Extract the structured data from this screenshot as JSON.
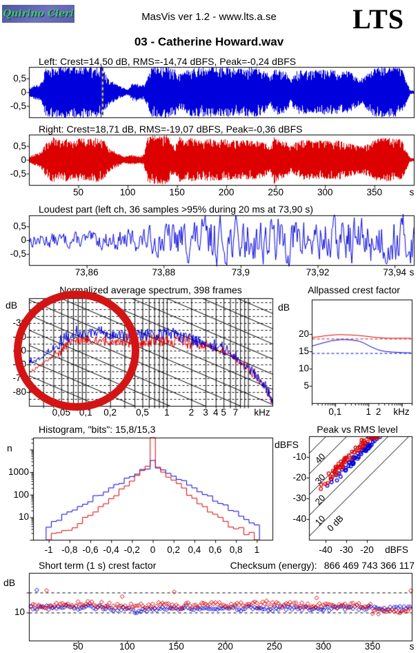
{
  "header": {
    "logo_text": "Quirino Cieri",
    "version_line": "MasVis ver 1.2 - www.lts.a.se",
    "brand": "LTS",
    "title": "03 - Catherine Howard.wav"
  },
  "colors": {
    "left_channel": "#0000dd",
    "right_channel": "#dd0000",
    "annotation": "#d41414",
    "logo_bg": "#5c61ab",
    "logo_text": "#3dc95d"
  },
  "chart_data": [
    {
      "id": "waveform-left",
      "type": "area",
      "channel": "left",
      "title": "Left: Crest=14,50 dB, RMS=-14,74 dBFS, Peak=-0,24 dBFS",
      "ylim": [
        -0.92,
        0.92
      ],
      "yticks": {
        "values": [
          0.5,
          0,
          -0.5
        ],
        "labels": [
          "0,5",
          "0",
          "-0,5"
        ]
      },
      "xlim": [
        0,
        390
      ],
      "marker_s": 73.9,
      "seed": 3,
      "envelope_t": [
        0,
        5,
        10,
        14,
        16,
        20,
        30,
        40,
        50,
        60,
        70,
        74,
        78,
        82,
        86,
        90,
        95,
        99,
        101,
        104,
        108,
        112,
        116,
        120,
        124,
        132,
        140,
        148,
        152,
        156,
        160,
        165,
        175,
        185,
        195,
        205,
        215,
        225,
        235,
        240,
        244,
        247,
        250,
        255,
        260,
        264,
        268,
        272,
        280,
        290,
        300,
        310,
        320,
        325,
        330,
        335,
        340,
        345,
        350,
        360,
        370,
        375,
        378,
        381,
        384,
        386,
        390
      ],
      "envelope_a": [
        0.15,
        0.25,
        0.3,
        0.5,
        0.85,
        0.9,
        0.92,
        0.95,
        0.93,
        0.9,
        0.92,
        0.95,
        0.6,
        0.45,
        0.35,
        0.25,
        0.18,
        0.1,
        0.12,
        0.3,
        0.35,
        0.25,
        0.3,
        0.55,
        0.9,
        0.92,
        0.92,
        0.85,
        0.65,
        0.7,
        0.8,
        0.9,
        0.9,
        0.9,
        0.9,
        0.88,
        0.85,
        0.92,
        0.85,
        0.8,
        0.5,
        0.75,
        0.85,
        0.8,
        0.75,
        0.45,
        0.6,
        0.8,
        0.8,
        0.8,
        0.82,
        0.8,
        0.8,
        0.75,
        0.6,
        0.5,
        0.55,
        0.75,
        0.9,
        0.9,
        0.9,
        0.88,
        0.8,
        0.5,
        0.25,
        0.08,
        0.05
      ]
    },
    {
      "id": "waveform-right",
      "type": "area",
      "channel": "right",
      "title": "Right: Crest=18,71 dB, RMS=-19,07 dBFS, Peak=-0,36 dBFS",
      "ylim": [
        -0.92,
        0.92
      ],
      "yticks": {
        "values": [
          0.5,
          0,
          -0.5
        ],
        "labels": [
          "0,5",
          "0",
          "-0,5"
        ]
      },
      "xlim": [
        0,
        390
      ],
      "xticks": {
        "values": [
          50,
          100,
          150,
          200,
          250,
          300,
          350
        ],
        "labels": [
          "50",
          "100",
          "150",
          "200",
          "250",
          "300",
          "350"
        ]
      },
      "x_unit": "s",
      "seed": 9,
      "envelope_t": [
        0,
        5,
        10,
        14,
        16,
        20,
        24,
        28,
        36,
        44,
        52,
        60,
        68,
        76,
        80,
        84,
        88,
        92,
        96,
        100,
        104,
        108,
        112,
        116,
        120,
        124,
        132,
        140,
        144,
        148,
        152,
        156,
        164,
        172,
        180,
        190,
        200,
        210,
        220,
        230,
        235,
        240,
        244,
        248,
        252,
        260,
        264,
        268,
        276,
        285,
        295,
        305,
        315,
        325,
        330,
        335,
        340,
        345,
        350,
        355,
        365,
        375,
        378,
        381,
        384,
        386,
        390
      ],
      "envelope_a": [
        0.12,
        0.2,
        0.25,
        0.4,
        0.6,
        0.7,
        0.85,
        0.7,
        0.8,
        0.72,
        0.8,
        0.75,
        0.82,
        0.7,
        0.45,
        0.35,
        0.3,
        0.2,
        0.12,
        0.15,
        0.18,
        0.15,
        0.12,
        0.2,
        0.8,
        0.9,
        0.88,
        0.9,
        0.6,
        0.5,
        0.85,
        0.7,
        0.8,
        0.72,
        0.78,
        0.75,
        0.75,
        0.7,
        0.72,
        0.7,
        0.65,
        0.6,
        0.4,
        0.9,
        0.75,
        0.65,
        0.5,
        0.6,
        0.72,
        0.72,
        0.7,
        0.7,
        0.7,
        0.6,
        0.55,
        0.5,
        0.55,
        0.6,
        0.75,
        0.8,
        0.79,
        0.75,
        0.7,
        0.45,
        0.2,
        0.07,
        0.05
      ]
    },
    {
      "id": "loudest-part",
      "type": "line",
      "channel": "left",
      "title": "Loudest part (left  ch, 36 samples >95% during 20 ms at 73,90 s)",
      "ylim": [
        -0.92,
        0.92
      ],
      "yticks": {
        "values": [
          0.5,
          0,
          -0.5
        ],
        "labels": [
          "0,5",
          "0",
          "-0,5"
        ]
      },
      "xlim": [
        73.845,
        73.945
      ],
      "xticks": {
        "values": [
          73.86,
          73.88,
          73.9,
          73.92,
          73.94
        ],
        "labels": [
          "73,86",
          "73,88",
          "73,9",
          "73,92",
          "73,94"
        ]
      },
      "x_unit": "s",
      "seed": 13,
      "envelope_t": [
        73.845,
        73.86,
        73.875,
        73.882,
        73.888,
        73.893,
        73.9,
        73.91,
        73.925,
        73.945
      ],
      "envelope_a": [
        0.3,
        0.32,
        0.5,
        0.75,
        0.85,
        0.95,
        0.9,
        0.95,
        0.92,
        0.95
      ]
    },
    {
      "id": "spectrum",
      "type": "line",
      "title": "Normalized average spectrum, 398 frames",
      "ylabel": "dB",
      "ylim": [
        -12,
        -90
      ],
      "yticks": {
        "values": [
          -30,
          -40,
          -50,
          -60,
          -70,
          -80
        ],
        "labels": [
          "-30",
          "-40",
          "-50",
          "-60",
          "-70",
          "-80"
        ]
      },
      "xlim": [
        0.02,
        20
      ],
      "xticks": {
        "values": [
          0.05,
          0.1,
          0.2,
          0.5,
          1,
          2,
          3,
          4,
          5,
          7
        ],
        "labels": [
          "0,05",
          "0,1",
          "0,2",
          "0,5",
          "1",
          "2",
          "3",
          "4",
          "5",
          "7"
        ]
      },
      "x_unit": "kHz",
      "seed": 7,
      "freq_khz": [
        0.02,
        0.025,
        0.03,
        0.04,
        0.05,
        0.06,
        0.07,
        0.08,
        0.09,
        0.1,
        0.12,
        0.15,
        0.2,
        0.25,
        0.3,
        0.4,
        0.5,
        0.7,
        1,
        1.5,
        2,
        3,
        4,
        5,
        6,
        7,
        8,
        10,
        12,
        15,
        20
      ],
      "left_db": [
        -60,
        -57,
        -54,
        -49,
        -45,
        -41,
        -39,
        -38,
        -38,
        -38,
        -37,
        -38,
        -39,
        -38,
        -39,
        -38,
        -39,
        -37,
        -38,
        -40,
        -42,
        -45,
        -48,
        -50,
        -52,
        -55,
        -58,
        -63,
        -67,
        -73,
        -87
      ],
      "right_db": [
        -66,
        -62,
        -59,
        -54,
        -50,
        -45,
        -43,
        -42,
        -43,
        -42,
        -42,
        -43,
        -44,
        -43,
        -44,
        -43,
        -44,
        -42,
        -43,
        -44,
        -45,
        -47,
        -49,
        -51,
        -53,
        -56,
        -59,
        -64,
        -68,
        -74,
        -88
      ]
    },
    {
      "id": "allpassed-crest",
      "type": "line",
      "title": "Allpassed crest factor",
      "ylabel": "dB",
      "ylim": [
        30,
        0
      ],
      "yticks": {
        "values": [
          20,
          15,
          10,
          5
        ],
        "labels": [
          "20",
          "15",
          "10",
          "5"
        ]
      },
      "xlim": [
        0.02,
        20
      ],
      "xticks": {
        "values": [
          0.1,
          1,
          2
        ],
        "labels": [
          "0,1",
          "1",
          "2"
        ]
      },
      "x_unit": "kHz",
      "freq_khz": [
        0.02,
        0.03,
        0.05,
        0.08,
        0.1,
        0.15,
        0.2,
        0.3,
        0.5,
        0.7,
        1,
        1.5,
        2,
        3,
        5,
        8,
        12,
        20
      ],
      "left_db": [
        16.5,
        17.0,
        17.6,
        18.1,
        18.2,
        18.4,
        18.4,
        18.3,
        18.0,
        17.5,
        16.7,
        15.9,
        15.4,
        15.0,
        14.8,
        14.7,
        14.6,
        14.6
      ],
      "right_db": [
        19.0,
        19.2,
        19.5,
        19.7,
        19.8,
        19.85,
        19.8,
        19.75,
        19.6,
        19.45,
        19.3,
        19.1,
        19.0,
        18.85,
        18.8,
        18.8,
        18.8,
        18.8
      ],
      "left_mean_db": 14.5,
      "right_mean_db": 18.7
    },
    {
      "id": "histogram",
      "type": "line",
      "title": "Histogram, \"bits\": 15,8/15,3",
      "ylabel": "n",
      "yticks": {
        "values": [
          1000,
          100,
          10
        ],
        "labels": [
          "1000",
          "100",
          "10"
        ]
      },
      "xlim": [
        -1.15,
        1.15
      ],
      "xticks": {
        "values": [
          -1,
          -0.8,
          -0.6,
          -0.4,
          -0.2,
          0,
          0.2,
          0.4,
          0.6,
          0.8,
          1
        ],
        "labels": [
          "-1",
          "-0,8",
          "-0,6",
          "-0,4",
          "-0,2",
          "0",
          "0,2",
          "0,4",
          "0,6",
          "0,8",
          "1"
        ]
      },
      "seed": 5,
      "bin_centers": [
        -1,
        -0.95,
        -0.9,
        -0.85,
        -0.8,
        -0.75,
        -0.7,
        -0.65,
        -0.6,
        -0.55,
        -0.5,
        -0.45,
        -0.4,
        -0.35,
        -0.3,
        -0.25,
        -0.2,
        -0.15,
        -0.1,
        -0.05,
        0,
        0.05,
        0.1,
        0.15,
        0.2,
        0.25,
        0.3,
        0.35,
        0.4,
        0.45,
        0.5,
        0.55,
        0.6,
        0.65,
        0.7,
        0.75,
        0.8,
        0.85,
        0.9,
        0.95,
        1
      ],
      "left_counts": [
        4,
        6,
        8,
        12,
        16,
        22,
        30,
        42,
        58,
        80,
        110,
        150,
        200,
        270,
        360,
        480,
        640,
        850,
        1150,
        1600,
        2800,
        1600,
        1150,
        850,
        640,
        480,
        360,
        270,
        200,
        150,
        110,
        80,
        58,
        42,
        30,
        22,
        16,
        12,
        8,
        6,
        4
      ],
      "right_counts": [
        0,
        2,
        2,
        3,
        3,
        4,
        6,
        9,
        13,
        20,
        30,
        45,
        70,
        110,
        170,
        270,
        430,
        700,
        1100,
        1900,
        60000,
        1900,
        1100,
        700,
        430,
        270,
        170,
        110,
        70,
        45,
        30,
        20,
        13,
        9,
        6,
        4,
        3,
        3,
        2,
        2,
        0
      ]
    },
    {
      "id": "peak-vs-rms",
      "type": "scatter",
      "title": "Peak vs RMS level",
      "ylabel": "dBFS",
      "x_unit": "dBFS",
      "xlim": [
        -48,
        2
      ],
      "ylim": [
        0,
        -50
      ],
      "xticks": {
        "values": [
          -40,
          -30,
          -20
        ],
        "labels": [
          "-40",
          "-30",
          "-20"
        ]
      },
      "yticks": {
        "values": [
          -10,
          -20,
          -30,
          -40
        ],
        "labels": [
          "-10",
          "-20",
          "-30",
          "-40"
        ]
      },
      "diagonals": {
        "values": [
          40,
          30,
          20,
          10,
          0
        ],
        "labels": [
          "40",
          "30",
          "20",
          "10",
          "0 dB"
        ]
      },
      "series": [
        {
          "name": "left",
          "channel": "left",
          "count": 55,
          "rms_range": [
            -44,
            -14
          ],
          "crest_mean_db": 15,
          "crest_spread_db": 1.8,
          "seed": 21
        },
        {
          "name": "right",
          "channel": "right",
          "count": 78,
          "rms_range": [
            -46,
            -14
          ],
          "crest_mean_db": 18.5,
          "crest_spread_db": 2.2,
          "seed": 33
        }
      ]
    },
    {
      "id": "short-term-crest",
      "type": "scatter",
      "title": "Short term (1 s) crest factor",
      "checksum_label": "Checksum (energy):",
      "checksum_value": "866 469 743 366 117",
      "ylabel": "dB",
      "yticks": {
        "values": [
          10
        ],
        "labels": [
          "10"
        ]
      },
      "dashed_db": [
        20,
        10
      ],
      "xlim": [
        0,
        390
      ],
      "xticks": {
        "values": [
          50,
          100,
          150,
          200,
          250,
          300,
          350
        ],
        "labels": [
          "50",
          "100",
          "150",
          "200",
          "250",
          "300",
          "350"
        ]
      },
      "x_unit": "s",
      "series": [
        {
          "name": "left",
          "channel": "left",
          "mean_db": 12.3,
          "spread_db": 1.1,
          "seed": 41
        },
        {
          "name": "right",
          "channel": "right",
          "mean_db": 13.7,
          "spread_db": 1.4,
          "seed": 55
        }
      ],
      "outliers": [
        {
          "t": 8,
          "v": 21.2,
          "ch": "left"
        },
        {
          "t": 18,
          "v": 21.0,
          "ch": "right"
        },
        {
          "t": 95,
          "v": 18.0,
          "ch": "right"
        },
        {
          "t": 148,
          "v": 20.3,
          "ch": "right"
        },
        {
          "t": 293,
          "v": 17.3,
          "ch": "right"
        },
        {
          "t": 389,
          "v": 20.9,
          "ch": "right"
        }
      ]
    }
  ]
}
